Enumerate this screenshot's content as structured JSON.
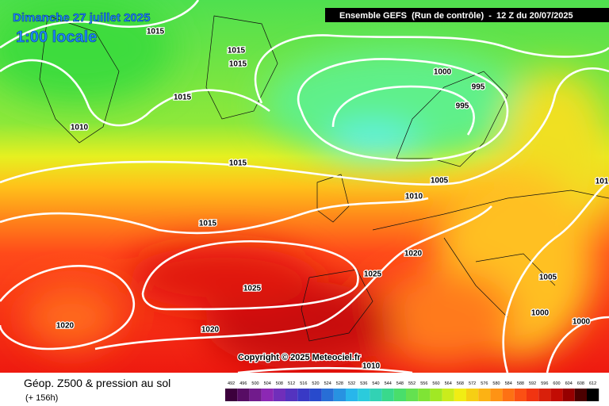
{
  "header": {
    "date": "Dimanche 27 juillet 2025",
    "local_time": "1:00 locale",
    "model": "Ensemble GEFS  (Run de contrôle)  -  12 Z du 20/07/2025"
  },
  "isobar_labels": [
    "1015",
    "1015",
    "1015",
    "1015",
    "1010",
    "1000",
    "995",
    "995",
    "1015",
    "1005",
    "1010",
    "1015",
    "1020",
    "1025",
    "1025",
    "1005",
    "1000",
    "1000",
    "1020",
    "1020",
    "1010",
    "101"
  ],
  "copyright": "Copyright © 2025 Meteociel.fr",
  "legend": {
    "title": "Géop. Z500 & pression au sol",
    "subtitle": "(+ 156h)",
    "scale": [
      492,
      496,
      500,
      504,
      508,
      512,
      516,
      520,
      524,
      528,
      532,
      536,
      540,
      544,
      548,
      552,
      556,
      560,
      564,
      568,
      572,
      576,
      580,
      584,
      588,
      592,
      596,
      600,
      604,
      608,
      612
    ]
  }
}
